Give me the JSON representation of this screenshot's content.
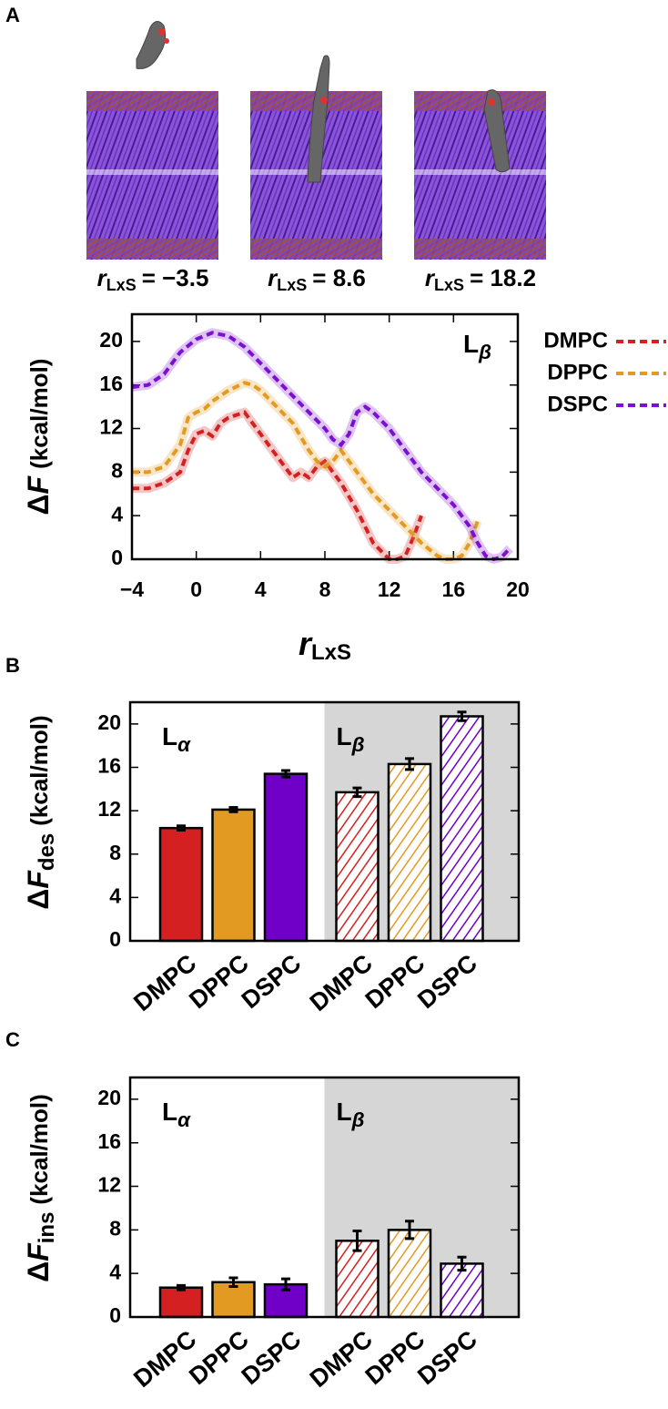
{
  "panel_labels": [
    "A",
    "B",
    "C"
  ],
  "snapshots": [
    {
      "symbol": "r",
      "subscript": "LxS",
      "text": "= −3.5"
    },
    {
      "symbol": "r",
      "subscript": "LxS",
      "text": "= 8.6"
    },
    {
      "symbol": "r",
      "subscript": "LxS",
      "text": "= 18.2"
    }
  ],
  "chart_data": [
    {
      "type": "line",
      "annotation": {
        "text": "L",
        "subscript": "β"
      },
      "xlabel": {
        "symbol": "r",
        "subscript": "LxS"
      },
      "ylabel": {
        "symbol": "Δ",
        "var": "F",
        "unit": "(kcal/mol)"
      },
      "xlim": [
        -4,
        20
      ],
      "xticks": [
        {
          "value": -4,
          "label": "−4"
        },
        0,
        4,
        8,
        12,
        16,
        20
      ],
      "ylim": [
        0,
        22.5
      ],
      "yticks": [
        0,
        4,
        8,
        12,
        16,
        20
      ],
      "legend": "outside right",
      "series": [
        {
          "name": "DMPC",
          "color": "#d42020",
          "x": [
            -4,
            -3,
            -2,
            -1,
            -0.5,
            0,
            0.5,
            1,
            1.5,
            2,
            3,
            3.5,
            4,
            5,
            6,
            6.5,
            7,
            7.5,
            8,
            8.5,
            9,
            10,
            11,
            12,
            12.5,
            13,
            13.5,
            14
          ],
          "values": [
            6.5,
            6.5,
            7,
            8,
            10,
            11.5,
            11.8,
            11.3,
            12.5,
            13,
            13.5,
            12.5,
            11.5,
            9.5,
            7.5,
            8,
            7.5,
            8.5,
            9,
            8,
            7,
            4.5,
            1.5,
            0,
            0,
            0.3,
            2,
            4
          ]
        },
        {
          "name": "DPPC",
          "color": "#e39a22",
          "x": [
            -4,
            -3,
            -2,
            -1,
            -0.5,
            0,
            0.5,
            1,
            2,
            3,
            3.5,
            4,
            5,
            6,
            7,
            7.5,
            8,
            8.5,
            9,
            10,
            11,
            12,
            13,
            14,
            15,
            15.5,
            16,
            16.5,
            17,
            17.5
          ],
          "values": [
            8,
            8,
            8.5,
            10.5,
            13,
            13.5,
            13.8,
            14.5,
            15.5,
            16.2,
            16,
            15.5,
            14,
            12.5,
            10,
            9,
            8.5,
            9,
            10,
            8,
            6,
            4.5,
            3,
            1.5,
            0.3,
            0,
            0,
            0.3,
            1.5,
            3.5
          ]
        },
        {
          "name": "DSPC",
          "color": "#7a10d0",
          "x": [
            -4,
            -3,
            -2,
            -1,
            0,
            1,
            2,
            3,
            4,
            5,
            6,
            7,
            8,
            8.5,
            9,
            9.5,
            10,
            10.5,
            11,
            12,
            13,
            14,
            15,
            16,
            17,
            17.5,
            18,
            18.5,
            19,
            19.5
          ],
          "values": [
            15.8,
            16,
            17,
            19,
            20.2,
            20.8,
            20.5,
            19.5,
            18,
            16.5,
            15,
            13.5,
            12,
            11,
            10.5,
            11.5,
            13.5,
            14,
            13.5,
            12,
            10,
            8,
            6.5,
            5,
            3,
            1.5,
            0.3,
            0,
            0.2,
            1
          ]
        }
      ]
    },
    {
      "type": "bar",
      "ylabel": {
        "symbol": "Δ",
        "var": "F",
        "subscript": "des",
        "unit": "(kcal/mol)"
      },
      "phases": [
        {
          "text": "L",
          "subscript": "α"
        },
        {
          "text": "L",
          "subscript": "β"
        }
      ],
      "categories": [
        "DMPC",
        "DPPC",
        "DSPC",
        "DMPC",
        "DPPC",
        "DSPC"
      ],
      "values": [
        10.4,
        12.1,
        15.4,
        13.7,
        16.3,
        20.7
      ],
      "errors": [
        0.2,
        0.2,
        0.3,
        0.4,
        0.5,
        0.4
      ],
      "colors": [
        "#d42020",
        "#e39a22",
        "#7000c8",
        "#d42020",
        "#e39a22",
        "#7000c8"
      ],
      "hatched": [
        false,
        false,
        false,
        true,
        true,
        true
      ],
      "shade_color": "#d6d6d6",
      "ylim": [
        0,
        22
      ],
      "yticks": [
        0,
        4,
        8,
        12,
        16,
        20
      ]
    },
    {
      "type": "bar",
      "ylabel": {
        "symbol": "Δ",
        "var": "F",
        "subscript": "ins",
        "unit": "(kcal/mol)"
      },
      "phases": [
        {
          "text": "L",
          "subscript": "α"
        },
        {
          "text": "L",
          "subscript": "β"
        }
      ],
      "categories": [
        "DMPC",
        "DPPC",
        "DSPC",
        "DMPC",
        "DPPC",
        "DSPC"
      ],
      "values": [
        2.7,
        3.2,
        3.0,
        7.0,
        8.0,
        4.9
      ],
      "errors": [
        0.2,
        0.4,
        0.5,
        0.9,
        0.8,
        0.6
      ],
      "colors": [
        "#d42020",
        "#e39a22",
        "#7000c8",
        "#d42020",
        "#e39a22",
        "#7000c8"
      ],
      "hatched": [
        false,
        false,
        false,
        true,
        true,
        true
      ],
      "shade_color": "#d6d6d6",
      "ylim": [
        0,
        22
      ],
      "yticks": [
        0,
        4,
        8,
        12,
        16,
        20
      ]
    }
  ]
}
